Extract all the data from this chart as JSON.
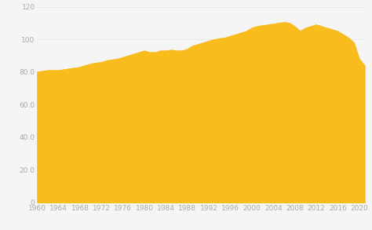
{
  "years": [
    1960,
    1961,
    1962,
    1963,
    1964,
    1965,
    1966,
    1967,
    1968,
    1969,
    1970,
    1971,
    1972,
    1973,
    1974,
    1975,
    1976,
    1977,
    1978,
    1979,
    1980,
    1981,
    1982,
    1983,
    1984,
    1985,
    1986,
    1987,
    1988,
    1989,
    1990,
    1991,
    1992,
    1993,
    1994,
    1995,
    1996,
    1997,
    1998,
    1999,
    2000,
    2001,
    2002,
    2003,
    2004,
    2005,
    2006,
    2007,
    2008,
    2009,
    2010,
    2011,
    2012,
    2013,
    2014,
    2015,
    2016,
    2017,
    2018,
    2019,
    2020,
    2021
  ],
  "values": [
    80,
    80.5,
    81,
    81,
    81,
    81.5,
    82,
    82.5,
    83,
    84,
    85,
    85.5,
    86,
    87,
    87.5,
    88,
    89,
    90,
    91,
    92,
    93,
    92,
    92,
    93,
    93,
    93.5,
    93,
    93,
    94,
    96,
    97,
    98,
    99,
    100,
    100.5,
    101,
    102,
    103,
    104,
    105,
    107,
    108,
    108.5,
    109,
    109.5,
    110,
    110.5,
    110,
    108,
    105,
    107,
    108,
    109,
    108,
    107,
    106,
    105,
    103,
    101,
    98,
    88,
    84
  ],
  "fill_color": "#F8BC1C",
  "line_color": "#F8BC1C",
  "background_color": "#f5f5f5",
  "xlim": [
    1960,
    2021
  ],
  "ylim": [
    0,
    120
  ],
  "yticks": [
    0,
    20.0,
    40.0,
    60.0,
    80.0,
    100,
    120
  ],
  "ytick_labels": [
    "0",
    "20.0",
    "40.0",
    "60.0",
    "80.0",
    "100",
    "120"
  ],
  "xticks": [
    1960,
    1964,
    1968,
    1972,
    1976,
    1980,
    1984,
    1988,
    1992,
    1996,
    2000,
    2004,
    2008,
    2012,
    2016,
    2020
  ],
  "grid_color": "#e8e8e8",
  "tick_label_color": "#aaaaaa",
  "tick_label_fontsize": 6.5
}
